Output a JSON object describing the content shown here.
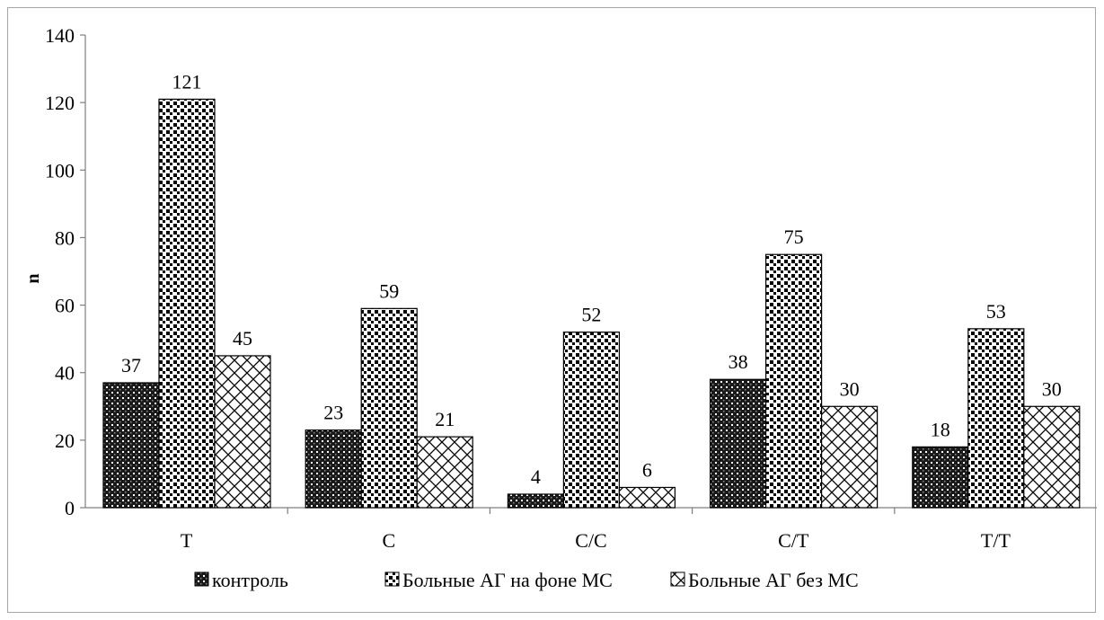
{
  "chart_data": {
    "type": "bar",
    "title": "",
    "xlabel": "",
    "ylabel": "n",
    "ylim": [
      0,
      140
    ],
    "yticks": [
      0,
      20,
      40,
      60,
      80,
      100,
      120,
      140
    ],
    "categories": [
      "T",
      "C",
      "C/C",
      "C/T",
      "T/T"
    ],
    "series": [
      {
        "name": "контроль",
        "values": [
          37,
          23,
          4,
          38,
          18
        ],
        "pattern": "dense-dots"
      },
      {
        "name": "Больные АГ на фоне МС",
        "values": [
          121,
          59,
          52,
          75,
          53
        ],
        "pattern": "squares"
      },
      {
        "name": "Больные АГ без МС",
        "values": [
          45,
          21,
          6,
          30,
          30
        ],
        "pattern": "crosshatch"
      }
    ],
    "data_labels": true,
    "grid": false,
    "legend_position": "bottom"
  }
}
